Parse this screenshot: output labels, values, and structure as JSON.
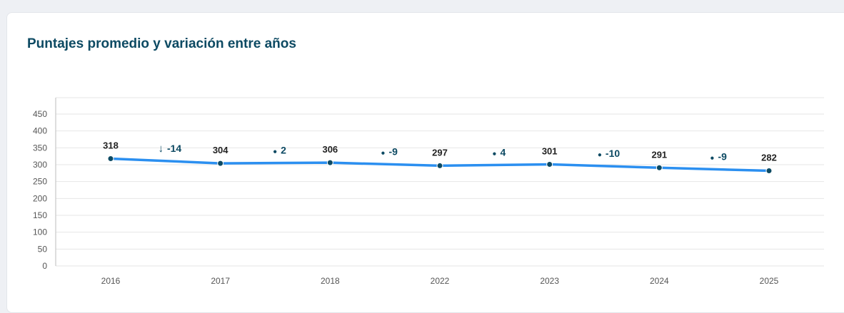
{
  "page": {
    "title": "Puntajes promedio y variación entre años"
  },
  "colors": {
    "line": "#2b8ff0",
    "point": "#0d4a63",
    "delta_marker": "#0d4a63",
    "grid": "#e6e6e6"
  },
  "chart_data": {
    "type": "line",
    "title": "Puntajes promedio y variación entre años",
    "xlabel": "",
    "ylabel": "",
    "ylim": [
      0,
      450
    ],
    "yticks": [
      0,
      50,
      100,
      150,
      200,
      250,
      300,
      350,
      400,
      450
    ],
    "grid": true,
    "categories": [
      "2016",
      "2017",
      "2018",
      "2022",
      "2023",
      "2024",
      "2025"
    ],
    "series": [
      {
        "values": [
          318,
          304,
          306,
          297,
          301,
          291,
          282
        ]
      }
    ],
    "value_labels": [
      "318",
      "304",
      "306",
      "297",
      "301",
      "291",
      "282"
    ],
    "variations": [
      {
        "marker": "↓",
        "text": "-14"
      },
      {
        "marker": "●",
        "text": "2"
      },
      {
        "marker": "●",
        "text": "-9"
      },
      {
        "marker": "●",
        "text": "4"
      },
      {
        "marker": "●",
        "text": "-10"
      },
      {
        "marker": "●",
        "text": "-9"
      }
    ]
  }
}
